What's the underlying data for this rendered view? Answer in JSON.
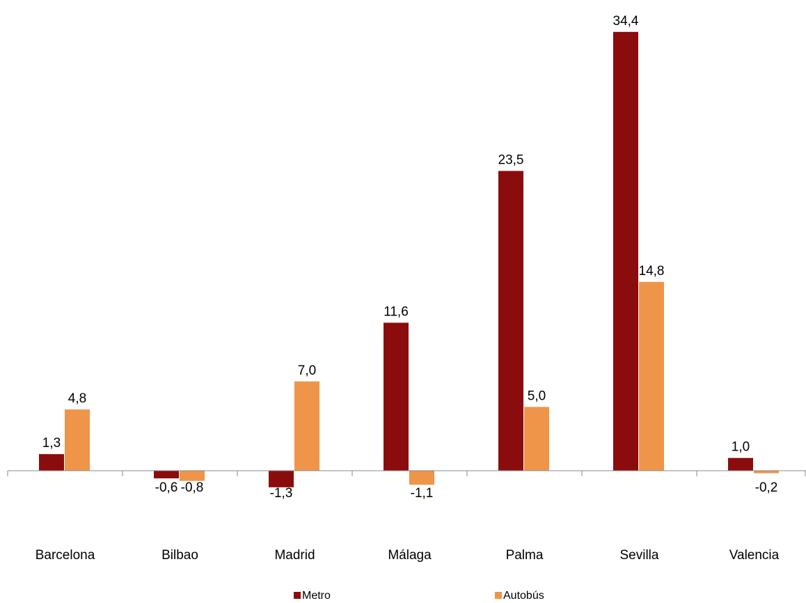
{
  "chart_data": {
    "type": "bar",
    "categories": [
      "Barcelona",
      "Bilbao",
      "Madrid",
      "Málaga",
      "Palma",
      "Sevilla",
      "Valencia"
    ],
    "series": [
      {
        "name": "Metro",
        "color": "#8B0C0C",
        "values": [
          1.3,
          -0.6,
          -1.3,
          11.6,
          23.5,
          34.4,
          1.0
        ],
        "labels": [
          "1,3",
          "-0,6",
          "-1,3",
          "11,6",
          "23,5",
          "34,4",
          "1,0"
        ]
      },
      {
        "name": "Autobús",
        "color": "#EE9549",
        "values": [
          4.8,
          -0.8,
          7.0,
          -1.1,
          5.0,
          14.8,
          -0.2
        ],
        "labels": [
          "4,8",
          "-0,8",
          "7,0",
          "-1,1",
          "5,0",
          "14,8",
          "-0,2"
        ]
      }
    ],
    "title": "",
    "xlabel": "",
    "ylabel": "",
    "legend_position": "bottom",
    "grid": false
  }
}
